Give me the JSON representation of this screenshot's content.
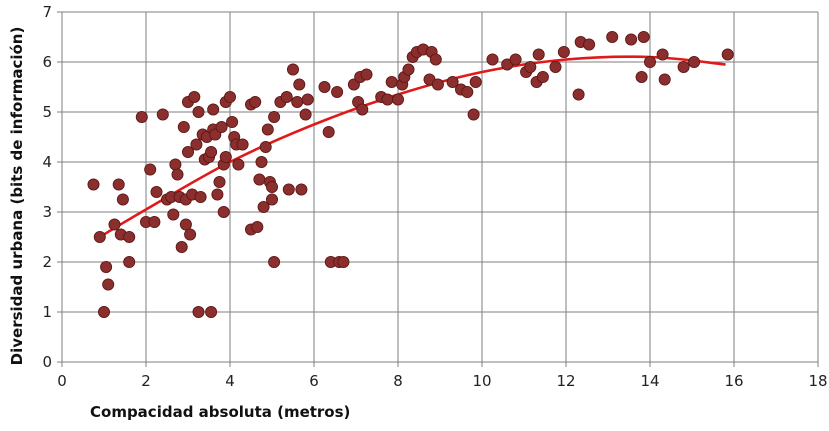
{
  "chart_data": {
    "type": "scatter",
    "xlabel": "Compacidad absoluta (metros)",
    "ylabel": "Diversidad urbana (bits de información)",
    "xlim": [
      0,
      18
    ],
    "ylim": [
      0,
      7
    ],
    "xticks": [
      0,
      2,
      4,
      6,
      8,
      10,
      12,
      14,
      16,
      18
    ],
    "yticks": [
      0,
      1,
      2,
      3,
      4,
      5,
      6,
      7
    ],
    "grid": true,
    "colors": {
      "points": "#8b2e2e",
      "trendline": "#e01a1a",
      "grid": "#7f7f7f"
    },
    "points": [
      [
        0.75,
        3.55
      ],
      [
        0.9,
        2.5
      ],
      [
        1.0,
        1.0
      ],
      [
        1.05,
        1.9
      ],
      [
        1.1,
        1.55
      ],
      [
        1.25,
        2.75
      ],
      [
        1.35,
        3.55
      ],
      [
        1.4,
        2.55
      ],
      [
        1.45,
        3.25
      ],
      [
        1.6,
        2.5
      ],
      [
        1.6,
        2.0
      ],
      [
        1.9,
        4.9
      ],
      [
        2.0,
        2.8
      ],
      [
        2.1,
        3.85
      ],
      [
        2.2,
        2.8
      ],
      [
        2.25,
        3.4
      ],
      [
        2.4,
        4.95
      ],
      [
        2.5,
        3.25
      ],
      [
        2.6,
        3.3
      ],
      [
        2.65,
        2.95
      ],
      [
        2.7,
        3.95
      ],
      [
        2.75,
        3.75
      ],
      [
        2.8,
        3.3
      ],
      [
        2.85,
        2.3
      ],
      [
        2.9,
        4.7
      ],
      [
        2.95,
        2.75
      ],
      [
        2.95,
        3.25
      ],
      [
        3.0,
        4.2
      ],
      [
        3.0,
        5.2
      ],
      [
        3.05,
        2.55
      ],
      [
        3.1,
        3.35
      ],
      [
        3.15,
        5.3
      ],
      [
        3.2,
        4.35
      ],
      [
        3.25,
        5.0
      ],
      [
        3.25,
        1.0
      ],
      [
        3.3,
        3.3
      ],
      [
        3.35,
        4.55
      ],
      [
        3.4,
        4.05
      ],
      [
        3.45,
        4.5
      ],
      [
        3.5,
        4.1
      ],
      [
        3.55,
        4.2
      ],
      [
        3.55,
        1.0
      ],
      [
        3.6,
        5.05
      ],
      [
        3.6,
        4.65
      ],
      [
        3.65,
        4.55
      ],
      [
        3.7,
        3.35
      ],
      [
        3.75,
        3.6
      ],
      [
        3.8,
        4.7
      ],
      [
        3.85,
        3.95
      ],
      [
        3.85,
        3.0
      ],
      [
        3.9,
        4.1
      ],
      [
        3.9,
        5.2
      ],
      [
        4.0,
        5.3
      ],
      [
        4.05,
        4.8
      ],
      [
        4.1,
        4.5
      ],
      [
        4.15,
        4.35
      ],
      [
        4.2,
        3.95
      ],
      [
        4.3,
        4.35
      ],
      [
        4.5,
        2.65
      ],
      [
        4.5,
        5.15
      ],
      [
        4.6,
        5.2
      ],
      [
        4.65,
        2.7
      ],
      [
        4.7,
        3.65
      ],
      [
        4.75,
        4.0
      ],
      [
        4.8,
        3.1
      ],
      [
        4.85,
        4.3
      ],
      [
        4.9,
        4.65
      ],
      [
        4.95,
        3.6
      ],
      [
        5.0,
        3.25
      ],
      [
        5.0,
        3.5
      ],
      [
        5.05,
        4.9
      ],
      [
        5.05,
        2.0
      ],
      [
        5.2,
        5.2
      ],
      [
        5.35,
        5.3
      ],
      [
        5.4,
        3.45
      ],
      [
        5.5,
        5.85
      ],
      [
        5.6,
        5.2
      ],
      [
        5.65,
        5.55
      ],
      [
        5.7,
        3.45
      ],
      [
        5.8,
        4.95
      ],
      [
        5.85,
        5.25
      ],
      [
        6.25,
        5.5
      ],
      [
        6.35,
        4.6
      ],
      [
        6.4,
        2.0
      ],
      [
        6.55,
        5.4
      ],
      [
        6.6,
        2.0
      ],
      [
        6.7,
        2.0
      ],
      [
        6.95,
        5.55
      ],
      [
        7.05,
        5.2
      ],
      [
        7.1,
        5.7
      ],
      [
        7.15,
        5.05
      ],
      [
        7.25,
        5.75
      ],
      [
        7.6,
        5.3
      ],
      [
        7.75,
        5.25
      ],
      [
        7.85,
        5.6
      ],
      [
        8.0,
        5.25
      ],
      [
        8.1,
        5.55
      ],
      [
        8.15,
        5.7
      ],
      [
        8.25,
        5.85
      ],
      [
        8.35,
        6.1
      ],
      [
        8.45,
        6.2
      ],
      [
        8.6,
        6.25
      ],
      [
        8.75,
        5.65
      ],
      [
        8.8,
        6.2
      ],
      [
        8.9,
        6.05
      ],
      [
        8.95,
        5.55
      ],
      [
        9.3,
        5.6
      ],
      [
        9.5,
        5.45
      ],
      [
        9.65,
        5.4
      ],
      [
        9.8,
        4.95
      ],
      [
        9.85,
        5.6
      ],
      [
        10.25,
        6.05
      ],
      [
        10.6,
        5.95
      ],
      [
        10.8,
        6.05
      ],
      [
        11.05,
        5.8
      ],
      [
        11.15,
        5.9
      ],
      [
        11.3,
        5.6
      ],
      [
        11.35,
        6.15
      ],
      [
        11.45,
        5.7
      ],
      [
        11.75,
        5.9
      ],
      [
        11.95,
        6.2
      ],
      [
        12.3,
        5.35
      ],
      [
        12.35,
        6.4
      ],
      [
        12.55,
        6.35
      ],
      [
        13.1,
        6.5
      ],
      [
        13.55,
        6.45
      ],
      [
        13.8,
        5.7
      ],
      [
        13.85,
        6.5
      ],
      [
        14.0,
        6.0
      ],
      [
        14.3,
        6.15
      ],
      [
        14.35,
        5.65
      ],
      [
        14.8,
        5.9
      ],
      [
        15.05,
        6.0
      ],
      [
        15.85,
        6.15
      ]
    ],
    "trendline": {
      "type": "polynomial",
      "x": [
        0.8,
        2.0,
        4.0,
        6.0,
        8.0,
        10.0,
        12.0,
        14.0,
        15.8
      ],
      "y": [
        2.45,
        3.05,
        4.0,
        4.75,
        5.35,
        5.8,
        6.05,
        6.1,
        5.95
      ]
    }
  }
}
